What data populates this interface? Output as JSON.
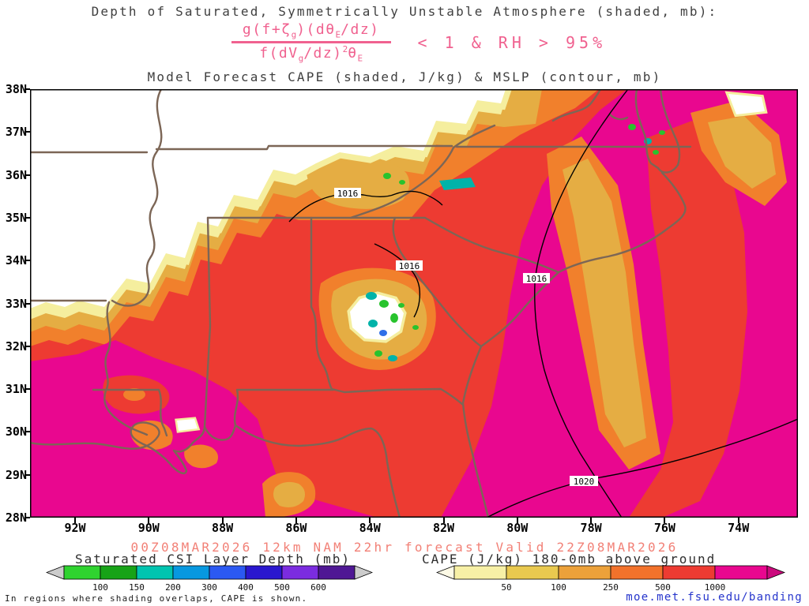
{
  "header": {
    "title_line1": "Depth of Saturated, Symmetrically Unstable Atmosphere (shaded, mb):",
    "title_line2": "Model Forecast CAPE (shaded, J/kg) & MSLP (contour, mb)",
    "formula": {
      "num_pre": "g(f+ζ",
      "num_sub1": "g",
      "num_mid": ")(dθ",
      "num_sub2": "E",
      "num_post": "/dz)",
      "den_pre": "f(dV",
      "den_sub1": "g",
      "den_mid": "/dz)",
      "den_sup": "2",
      "den_post": "θ",
      "den_sub2": "E",
      "condition": "< 1 & RH > 95%"
    }
  },
  "map": {
    "lat_ticks": [
      "38N",
      "37N",
      "36N",
      "35N",
      "34N",
      "33N",
      "32N",
      "31N",
      "30N",
      "29N",
      "28N"
    ],
    "lon_ticks": [
      "92W",
      "90W",
      "88W",
      "86W",
      "84W",
      "82W",
      "80W",
      "78W",
      "76W",
      "74W"
    ],
    "contour_labels": [
      "1016",
      "1016",
      "1016",
      "1020"
    ]
  },
  "footer": {
    "forecast_text": "00Z08MAR2026 12km NAM 22hr forecast Valid 22Z08MAR2026",
    "note": "In regions where shading overlaps, CAPE is shown.",
    "link": "moe.met.fsu.edu/banding"
  },
  "legends": {
    "csi": {
      "title": "Saturated CSI Layer Depth (mb)",
      "ticks": [
        "100",
        "150",
        "200",
        "300",
        "400",
        "500",
        "600"
      ],
      "colors": [
        "#2fd32f",
        "#17a317",
        "#00c4b0",
        "#0798e0",
        "#2b59f2",
        "#2a17cf",
        "#7b2ce0",
        "#4f1794"
      ],
      "tip_left": "#cccccc",
      "tip_right": "#cccccc"
    },
    "cape": {
      "title": "CAPE (J/kg) 180-0mb above ground",
      "ticks": [
        "50",
        "100",
        "250",
        "500",
        "1000"
      ],
      "colors": [
        "#f7f0a6",
        "#e9c94f",
        "#eca13a",
        "#f2722b",
        "#ed3b32",
        "#e9078f"
      ],
      "tip_left": "#fdfae6",
      "tip_right": "#cb0a7d"
    }
  },
  "chart_data": {
    "type": "heatmap",
    "title": "Model Forecast CAPE (shaded, J/kg) & MSLP (contour, mb)",
    "subtitle": "Depth of Saturated, Symmetrically Unstable Atmosphere (shaded, mb): g(f+ζg)(dθE/dz) / f(dVg/dz)²θE < 1 & RH > 95%",
    "region": "Southeastern United States",
    "x_axis": {
      "label": "Longitude",
      "ticks": [
        "92W",
        "90W",
        "88W",
        "86W",
        "84W",
        "82W",
        "80W",
        "78W",
        "76W",
        "74W"
      ],
      "range": [
        "93.2W",
        "72.4W"
      ]
    },
    "y_axis": {
      "label": "Latitude",
      "ticks": [
        "38N",
        "37N",
        "36N",
        "35N",
        "34N",
        "33N",
        "32N",
        "31N",
        "30N",
        "29N",
        "28N"
      ],
      "range": [
        "28N",
        "38N"
      ]
    },
    "shaded_fields": [
      {
        "name": "Saturated CSI Layer Depth (mb)",
        "levels": [
          100,
          150,
          200,
          300,
          400,
          500,
          600
        ],
        "colors": [
          "#2fd32f",
          "#17a317",
          "#00c4b0",
          "#0798e0",
          "#2b59f2",
          "#2a17cf",
          "#7b2ce0",
          "#4f1794"
        ]
      },
      {
        "name": "CAPE (J/kg) 180-0mb above ground",
        "levels": [
          50,
          100,
          250,
          500,
          1000
        ],
        "colors": [
          "#f7f0a6",
          "#e9c94f",
          "#eca13a",
          "#f2722b",
          "#ed3b32",
          "#e9078f"
        ]
      }
    ],
    "contour_field": {
      "name": "MSLP (contour, mb)",
      "labeled_values": [
        1016,
        1016,
        1016,
        1020
      ]
    },
    "model_run": "00Z08MAR2026",
    "model": "12km NAM",
    "forecast_hour": "22hr",
    "valid_time": "22Z08MAR2026",
    "notes": "CAPE shading (yellow-orange-red-magenta) covers most of the domain with highest values (>1000 J/kg) over the Gulf, western Gulf coast and Atlantic; saturated CSI layer depth (green/teal spots) appears over central Georgia, eastern Tennessee and the Chesapeake region; unshaded (white) area over Arkansas/Missouri/Kentucky."
  }
}
